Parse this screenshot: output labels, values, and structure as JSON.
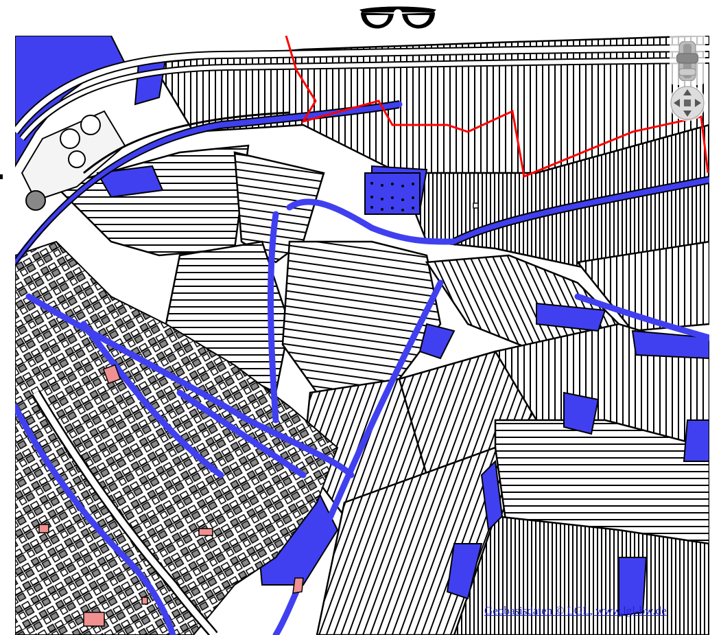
{
  "header": {
    "icon": "glasses-icon"
  },
  "map": {
    "colors": {
      "background": "#ffffff",
      "parcel_stroke": "#000000",
      "public_area": "#4040f0",
      "building": "#888888",
      "special_building": "#f09090",
      "boundary": "#ff0000"
    },
    "controls": {
      "zoom": {
        "icon": "zoom-slider-icon"
      },
      "pan": {
        "icon": "pan-arrows-icon"
      }
    }
  },
  "attribution": {
    "text": "Geobasisdaten © LGL, www.lgl-bw.de"
  }
}
